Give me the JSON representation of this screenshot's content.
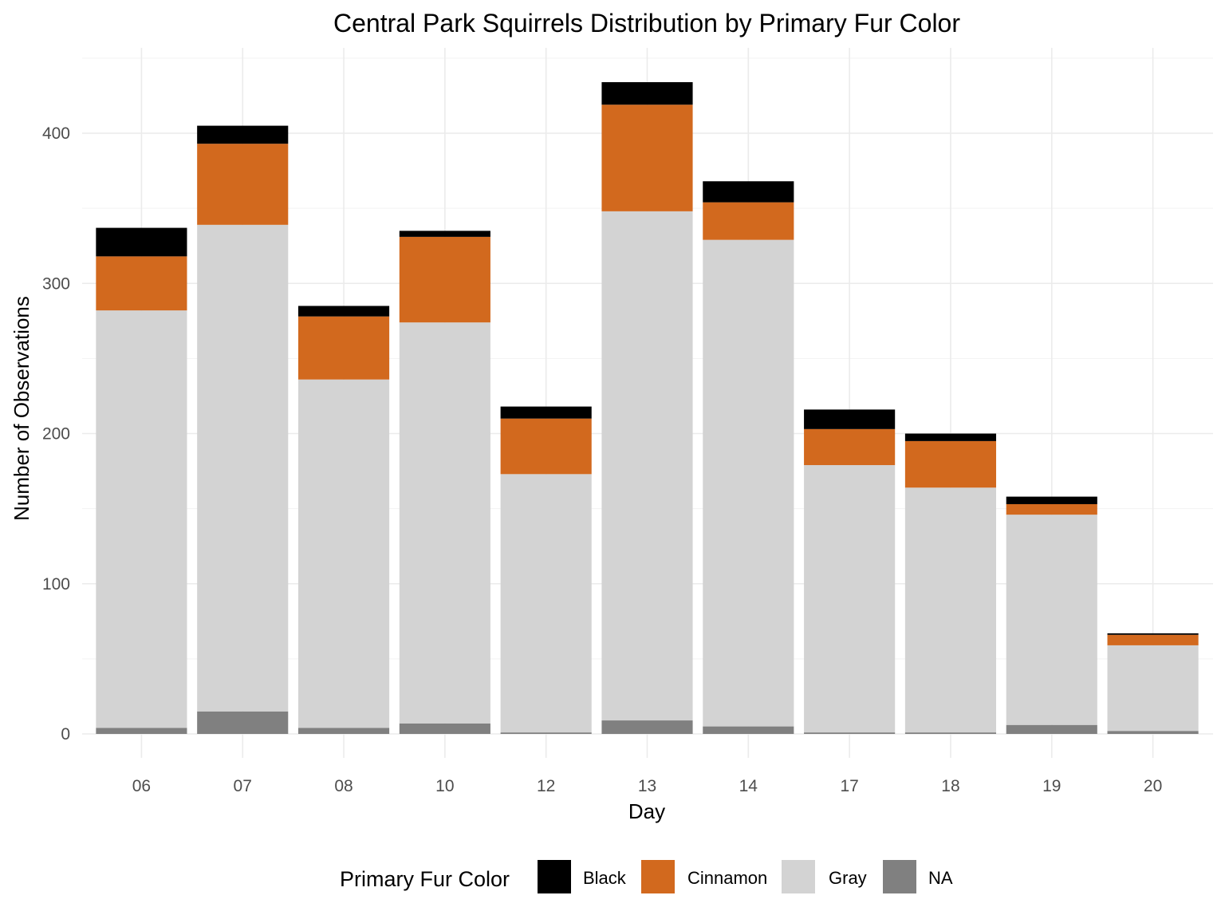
{
  "chart_data": {
    "type": "bar",
    "stacked": true,
    "title": "Central Park Squirrels Distribution by Primary Fur Color",
    "xlabel": "Day",
    "ylabel": "Number of Observations",
    "categories": [
      "06",
      "07",
      "08",
      "10",
      "12",
      "13",
      "14",
      "17",
      "18",
      "19",
      "20"
    ],
    "ylim": [
      0,
      450
    ],
    "yticks": [
      0,
      100,
      200,
      300,
      400
    ],
    "grid": true,
    "legend": {
      "title": "Primary Fur Color",
      "position": "bottom"
    },
    "series": [
      {
        "name": "NA",
        "color": "#808080",
        "values": [
          4,
          15,
          4,
          7,
          1,
          9,
          5,
          1,
          1,
          6,
          2
        ]
      },
      {
        "name": "Gray",
        "color": "#d3d3d3",
        "values": [
          278,
          324,
          232,
          267,
          172,
          339,
          324,
          178,
          163,
          140,
          57
        ]
      },
      {
        "name": "Cinnamon",
        "color": "#d2691e",
        "values": [
          36,
          54,
          42,
          57,
          37,
          71,
          25,
          24,
          31,
          7,
          7
        ]
      },
      {
        "name": "Black",
        "color": "#000000",
        "values": [
          19,
          12,
          7,
          4,
          8,
          15,
          14,
          13,
          5,
          5,
          1
        ]
      }
    ],
    "legend_order": [
      "Black",
      "Cinnamon",
      "Gray",
      "NA"
    ]
  }
}
